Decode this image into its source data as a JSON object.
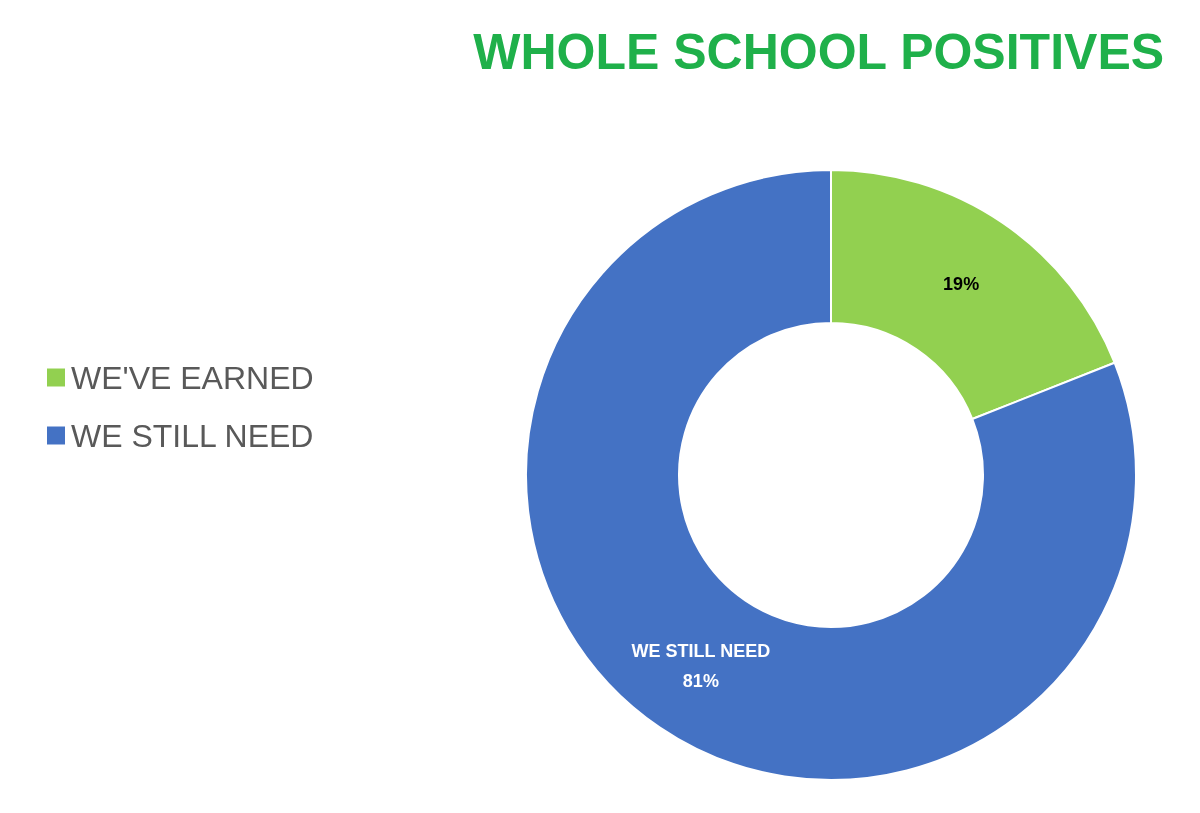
{
  "chart_data": {
    "type": "donut",
    "title": "WHOLE SCHOOL POSITIVES",
    "categories": [
      "WE'VE EARNED",
      "WE STILL NEED"
    ],
    "values": [
      19,
      81
    ],
    "colors": [
      "#92d050",
      "#4472c4"
    ],
    "value_labels": [
      "19%",
      "WE STILL NEED\n81%"
    ],
    "legend": "left"
  }
}
